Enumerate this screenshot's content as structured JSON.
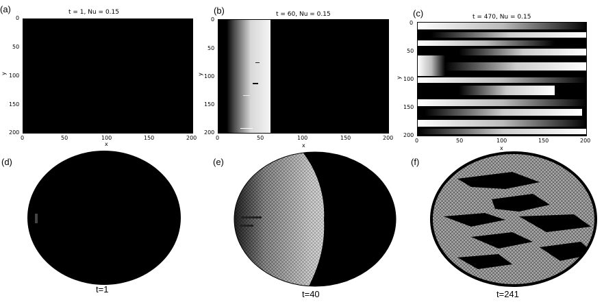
{
  "panels": [
    {
      "letter": "(a)",
      "title": "t = 1, Nu = 0.15"
    },
    {
      "letter": "(b)",
      "title": "t = 60, Nu = 0.15"
    },
    {
      "letter": "(c)",
      "title": "t = 470, Nu = 0.15"
    },
    {
      "letter": "(d)",
      "caption": "t=1"
    },
    {
      "letter": "(e)",
      "caption": "t=40"
    },
    {
      "letter": "(f)",
      "caption": "t=241"
    }
  ],
  "axes": {
    "xlabel": "x",
    "ylabel": "y",
    "x_ticks": [
      "0",
      "50",
      "100",
      "150",
      "200"
    ],
    "y_ticks": [
      "0",
      "50",
      "100",
      "150",
      "200"
    ]
  }
}
